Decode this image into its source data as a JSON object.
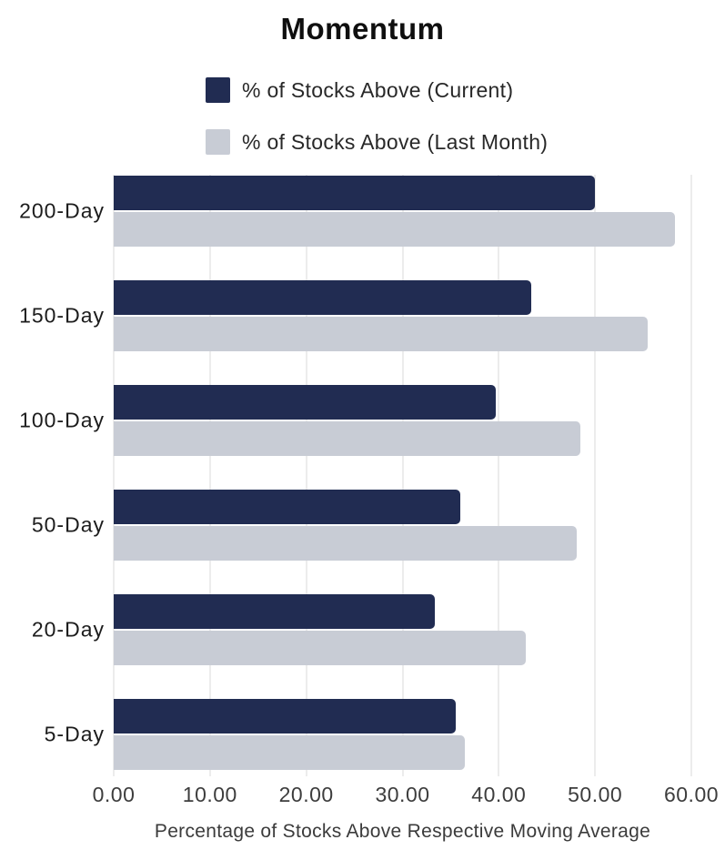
{
  "chart_data": {
    "type": "bar",
    "orientation": "horizontal",
    "title": "Momentum",
    "categories": [
      "200-Day",
      "150-Day",
      "100-Day",
      "50-Day",
      "20-Day",
      "5-Day"
    ],
    "series": [
      {
        "name": "% of Stocks Above (Current)",
        "color": "#212c52",
        "values": [
          50.0,
          43.4,
          39.7,
          36.0,
          33.4,
          35.5
        ]
      },
      {
        "name": "% of Stocks Above (Last Month)",
        "color": "#c8ccd5",
        "values": [
          58.3,
          55.5,
          48.5,
          48.1,
          42.8,
          36.5
        ]
      }
    ],
    "xlabel": "Percentage of Stocks Above Respective Moving Average",
    "xlim": [
      0,
      60
    ],
    "x_ticks": [
      0,
      10,
      20,
      30,
      40,
      50,
      60
    ],
    "x_tick_labels": [
      "0.00",
      "10.00",
      "20.00",
      "30.00",
      "40.00",
      "50.00",
      "60.00"
    ],
    "grid": "vertical",
    "gridline_color": "#d8d8d8",
    "legend_position": "top",
    "value_labels": false
  }
}
